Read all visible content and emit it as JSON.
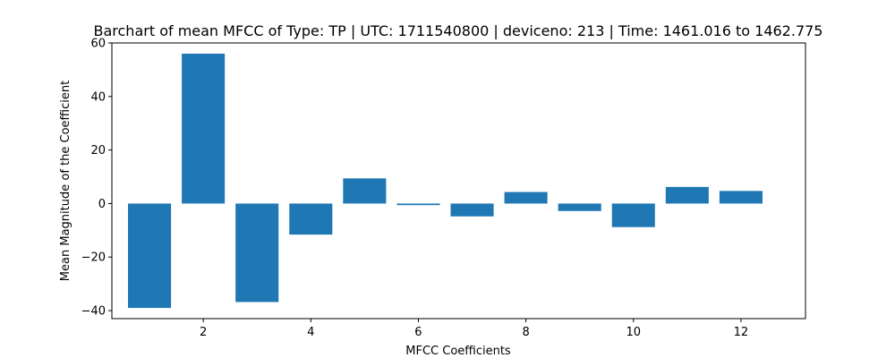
{
  "chart_data": {
    "type": "bar",
    "title": "Barchart of mean MFCC of Type: TP | UTC: 1711540800 | deviceno: 213 | Time: 1461.016 to 1462.775",
    "xlabel": "MFCC Coefficients",
    "ylabel": "Mean Magnitude of the Coefficient",
    "x": [
      1,
      2,
      3,
      4,
      5,
      6,
      7,
      8,
      9,
      10,
      11,
      12
    ],
    "values": [
      -39.0,
      56.0,
      -36.8,
      -11.6,
      9.4,
      -0.6,
      -4.8,
      4.3,
      -2.8,
      -8.8,
      6.2,
      4.7
    ],
    "xlim": [
      0.3,
      13.2
    ],
    "ylim": [
      -43.0,
      60.0
    ],
    "xticks": [
      2,
      4,
      6,
      8,
      10,
      12
    ],
    "xtick_labels": [
      "2",
      "4",
      "6",
      "8",
      "10",
      "12"
    ],
    "yticks": [
      -40,
      -20,
      0,
      20,
      40,
      60
    ],
    "ytick_labels": [
      "−40",
      "−20",
      "0",
      "20",
      "40",
      "60"
    ],
    "bar_color": "#1f77b4",
    "grid": false,
    "legend": "none"
  }
}
